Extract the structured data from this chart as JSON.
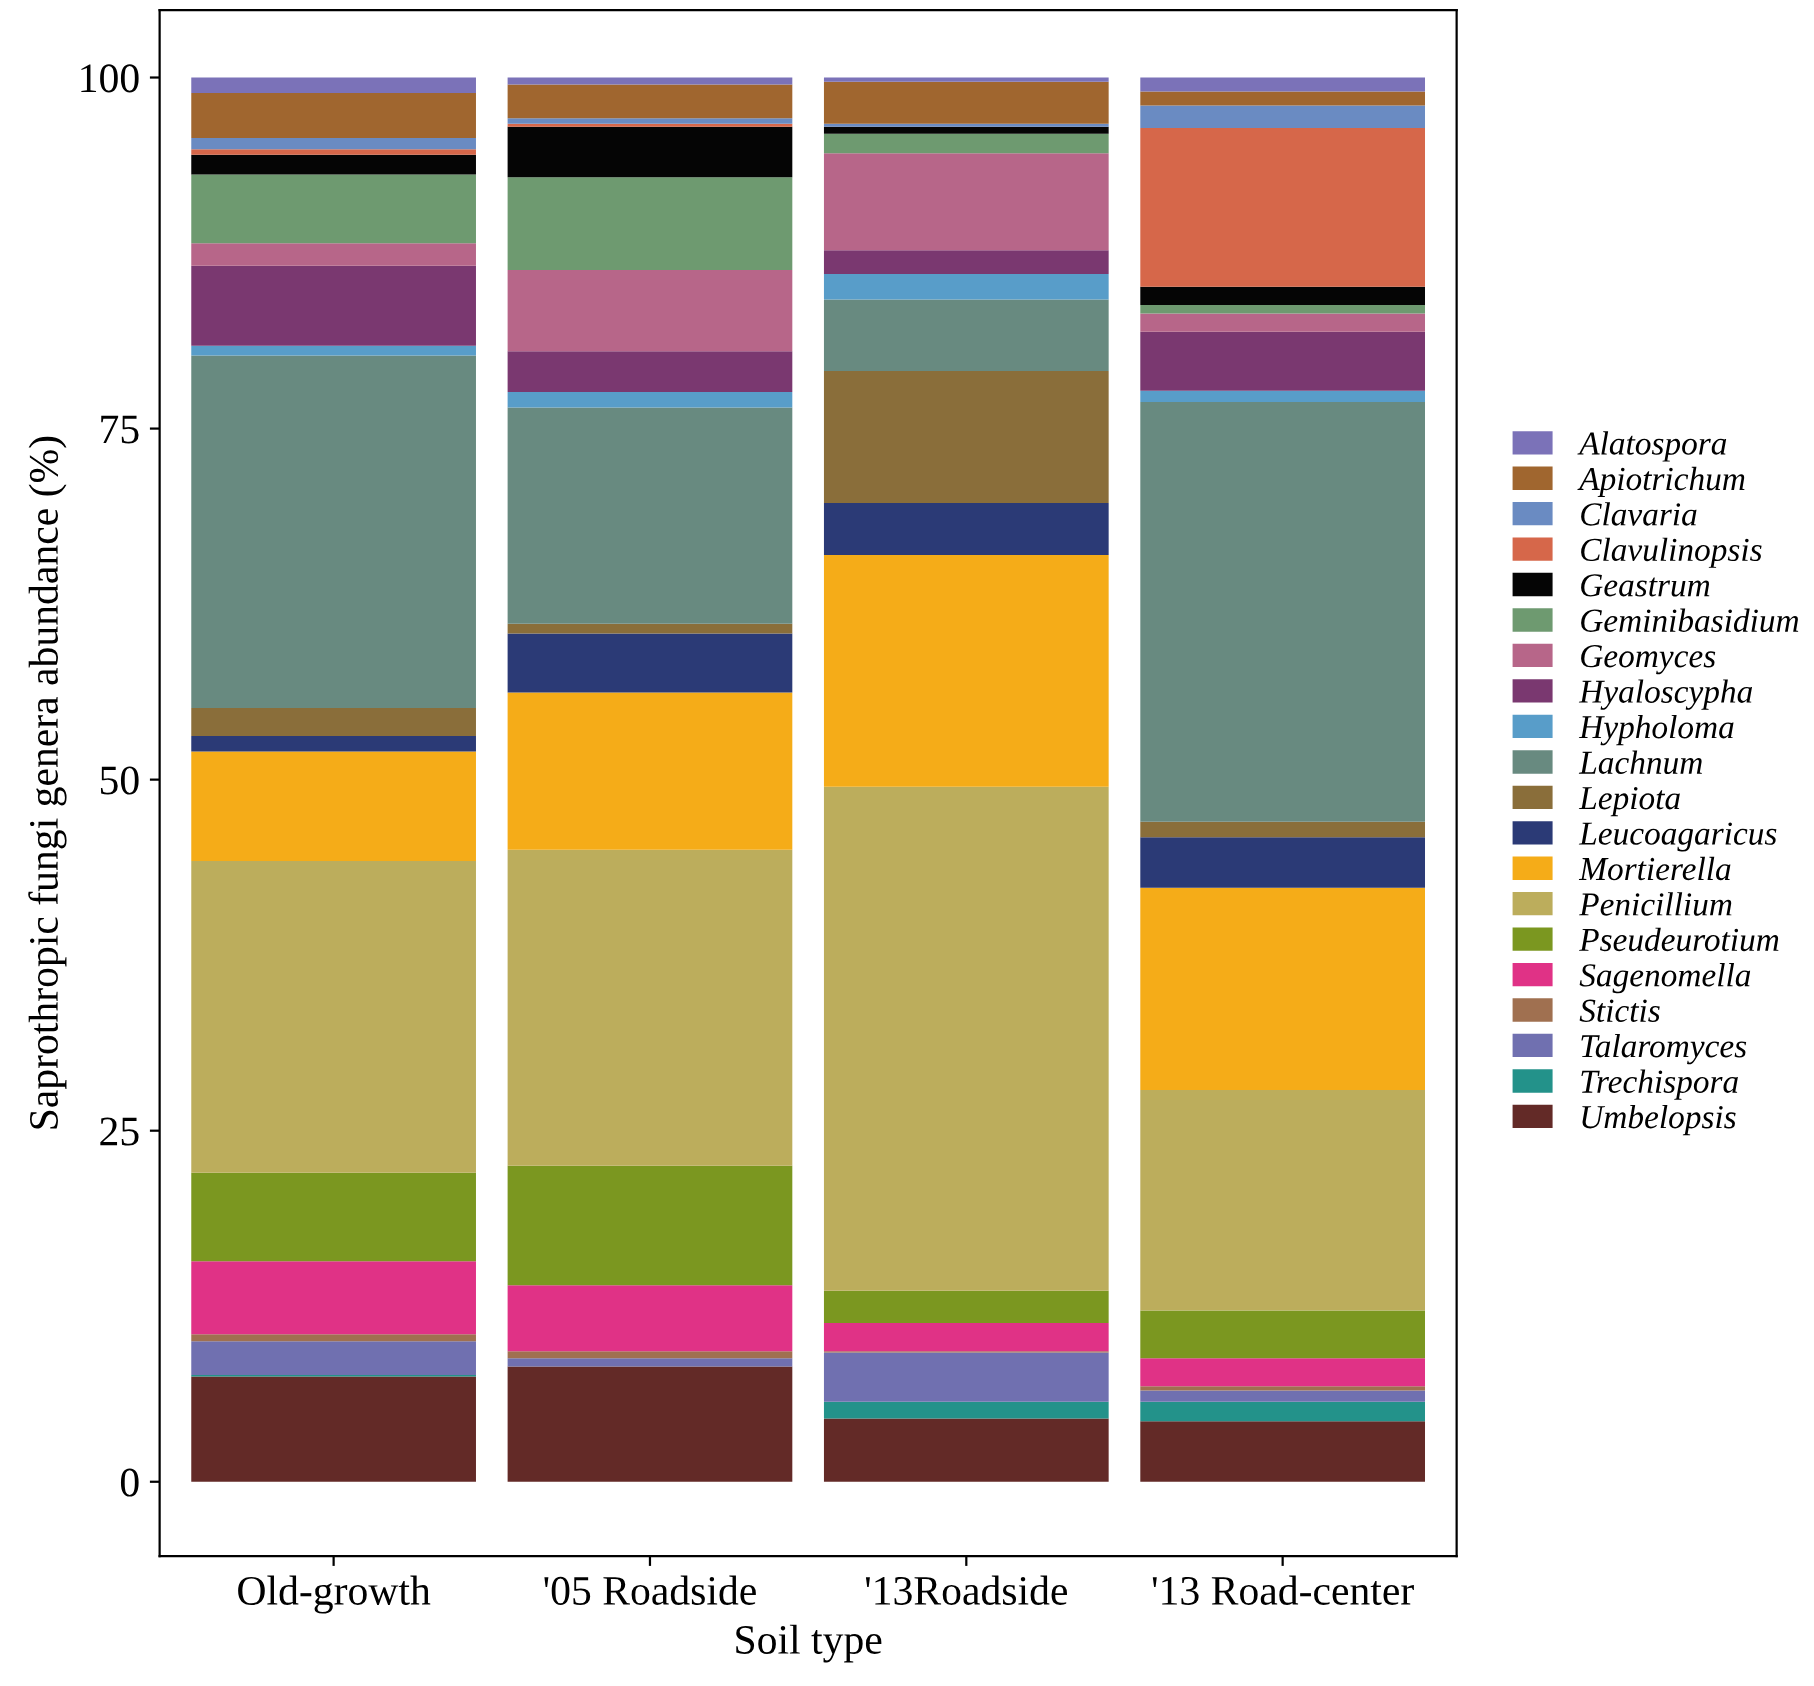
{
  "chart_data": {
    "type": "bar",
    "stacked": true,
    "xlabel": "Soil type",
    "ylabel": "Saprothropic fungi genera abundance (%)",
    "categories": [
      "Old-growth",
      "'05 Roadside",
      "'13Roadside",
      "'13 Road-center"
    ],
    "ylim": [
      -5.3,
      104.8
    ],
    "yticks": [
      0,
      25,
      50,
      75,
      100
    ],
    "grid": false,
    "legend": "right",
    "series": [
      {
        "name": "Umbelopsis",
        "color": "#632a27",
        "values": [
          7.5,
          8.2,
          4.5,
          4.3
        ]
      },
      {
        "name": "Trechispora",
        "color": "#23928a",
        "values": [
          0.1,
          0,
          1.2,
          1.4
        ]
      },
      {
        "name": "Talaromyces",
        "color": "#7070b0",
        "values": [
          2.4,
          0.6,
          3.5,
          0.8
        ]
      },
      {
        "name": "Stictis",
        "color": "#a07050",
        "values": [
          0.5,
          0.5,
          0.1,
          0.3
        ]
      },
      {
        "name": "Sagenomella",
        "color": "#e03286",
        "values": [
          5.2,
          4.7,
          2.0,
          2.0
        ]
      },
      {
        "name": "Pseudeurotium",
        "color": "#7b9720",
        "values": [
          6.3,
          8.5,
          2.3,
          3.4
        ]
      },
      {
        "name": "Penicillium",
        "color": "#bcad5c",
        "values": [
          22.2,
          22.5,
          35.9,
          15.7
        ]
      },
      {
        "name": "Mortierella",
        "color": "#f5ac18",
        "values": [
          7.8,
          11.2,
          16.5,
          14.4
        ]
      },
      {
        "name": "Leucoagaricus",
        "color": "#2b3a76",
        "values": [
          1.1,
          4.2,
          3.7,
          3.6
        ]
      },
      {
        "name": "Lepiota",
        "color": "#8a6e3a",
        "values": [
          2.0,
          0.7,
          9.4,
          1.1
        ]
      },
      {
        "name": "Lachnum",
        "color": "#688a80",
        "values": [
          25.1,
          15.4,
          5.1,
          29.9
        ]
      },
      {
        "name": "Hypholoma",
        "color": "#589dc9",
        "values": [
          0.7,
          1.1,
          1.8,
          0.8
        ]
      },
      {
        "name": "Hyaloscypha",
        "color": "#7a3870",
        "values": [
          5.7,
          2.9,
          1.7,
          4.2
        ]
      },
      {
        "name": "Geomyces",
        "color": "#b76689",
        "values": [
          1.6,
          5.8,
          6.9,
          1.3
        ]
      },
      {
        "name": "Geminibasidium",
        "color": "#6e9a70",
        "values": [
          4.9,
          6.6,
          1.4,
          0.6
        ]
      },
      {
        "name": "Geastrum",
        "color": "#050505",
        "values": [
          1.4,
          3.6,
          0.5,
          1.3
        ]
      },
      {
        "name": "Clavulinopsis",
        "color": "#d6674a",
        "values": [
          0.4,
          0.2,
          0,
          11.3
        ]
      },
      {
        "name": "Clavaria",
        "color": "#6a8bc2",
        "values": [
          0.8,
          0.4,
          0.2,
          1.6
        ]
      },
      {
        "name": "Apiotrichum",
        "color": "#a0662f",
        "values": [
          3.2,
          2.4,
          3.0,
          1.0
        ]
      },
      {
        "name": "Alatospora",
        "color": "#7b72b8",
        "values": [
          1.1,
          0.5,
          0.3,
          1.0
        ]
      }
    ]
  }
}
